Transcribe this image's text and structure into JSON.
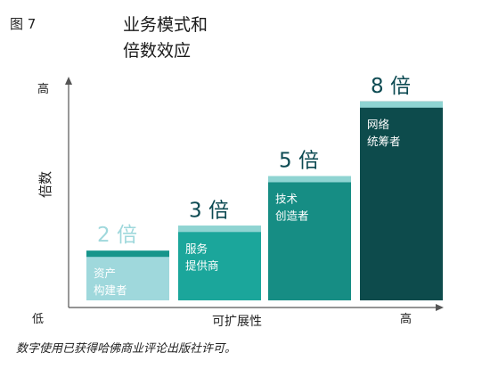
{
  "figure_label": "图 7",
  "title_lines": [
    "业务模式和",
    "倍数效应"
  ],
  "footnote": "数字使用已获得哈佛商业评论出版社许可。",
  "chart_data": {
    "type": "bar",
    "categories": [
      "资产\n构建者",
      "服务\n提供商",
      "技术\n创造者",
      "网络\n统筹者"
    ],
    "values": [
      2,
      3,
      5,
      8
    ],
    "value_labels": [
      "2 倍",
      "3 倍",
      "5 倍",
      "8 倍"
    ],
    "xlabel": "可扩展性",
    "ylabel": "倍数",
    "y_axis_low": "低",
    "y_axis_high": "高",
    "x_axis_high": "高",
    "ylim": [
      0,
      9.5
    ],
    "colors": {
      "bars": [
        "#9fd8dc",
        "#1ba69b",
        "#168d84",
        "#0d4b4c"
      ],
      "caps": [
        "#17958b",
        "#8fd4d2",
        "#8fd4d2",
        "#8fd4d2"
      ],
      "value_label_colors": [
        "#9fd8dc",
        "#0c4a52",
        "#0c4a52",
        "#0c4a52"
      ],
      "axis": "#555555"
    }
  }
}
